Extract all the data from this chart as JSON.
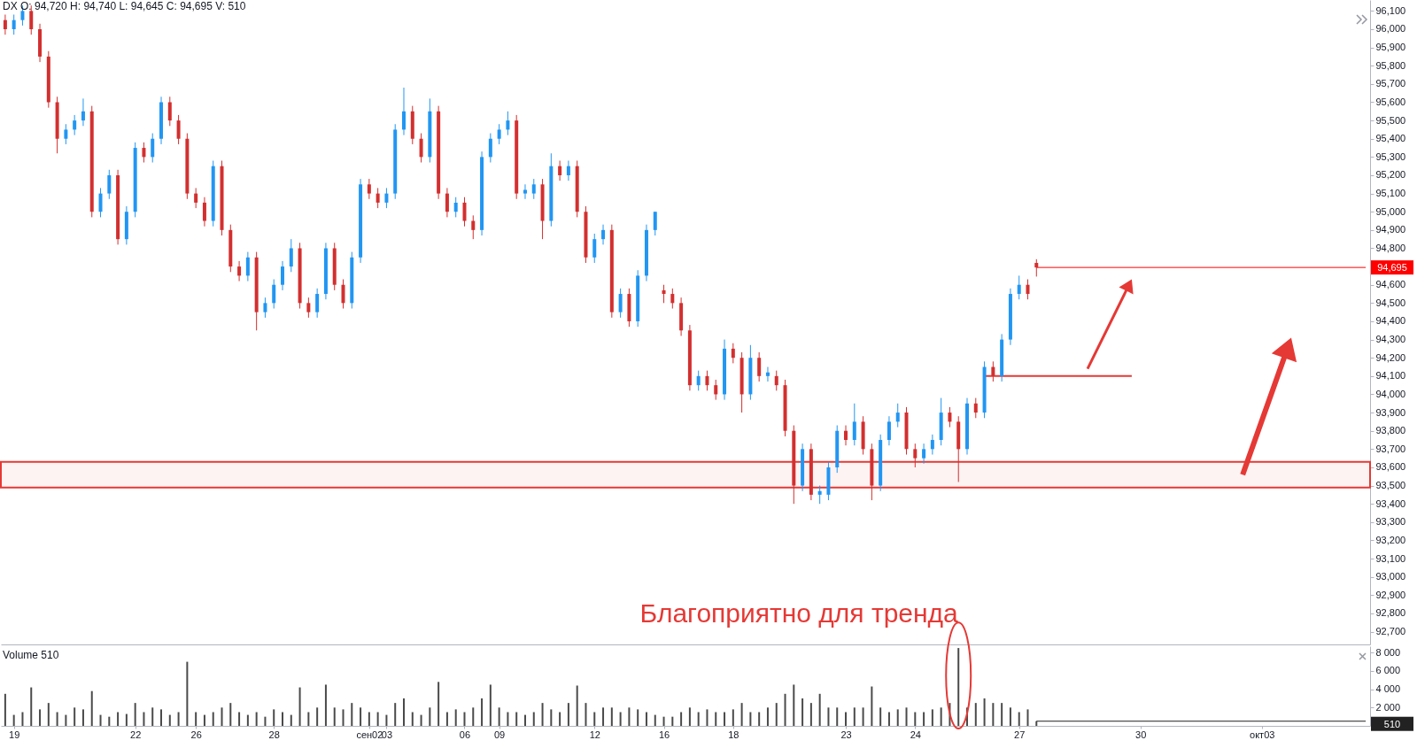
{
  "chart_data": [
    {
      "type": "candlestick",
      "title": "DX O: 94,720 H: 94,740 L: 94,645 C: 94,695 V: 510",
      "categories": [
        null,
        null,
        null,
        null,
        null,
        null,
        null,
        null,
        null,
        null,
        null,
        null,
        null,
        null,
        null,
        null,
        null,
        null,
        null,
        null,
        null,
        null,
        null,
        null,
        null,
        null,
        null,
        null,
        null,
        null,
        null,
        null,
        null,
        null,
        null,
        null,
        null,
        null,
        null,
        null,
        null,
        null,
        null,
        null,
        null,
        null,
        null,
        null,
        null,
        null,
        null,
        null,
        null,
        null,
        null,
        null,
        null,
        null,
        null,
        null,
        null,
        null,
        null,
        null,
        null,
        null,
        null,
        null,
        null,
        null,
        null,
        null,
        null,
        null,
        null,
        null,
        null,
        null,
        null,
        null,
        null,
        null,
        null,
        null,
        null,
        null,
        null,
        null,
        null,
        null,
        null,
        null,
        null,
        null,
        null,
        null,
        null,
        null,
        null,
        null,
        null,
        null,
        null,
        null,
        null,
        null,
        null,
        null,
        null,
        null,
        null,
        null,
        null,
        null,
        null,
        null,
        null,
        null,
        null,
        null,
        null,
        null,
        null,
        null,
        null,
        null,
        null,
        null,
        null,
        null,
        null,
        null,
        null,
        null,
        null,
        null,
        null,
        null,
        null,
        null,
        null,
        null,
        null,
        null,
        null,
        null,
        null,
        null,
        null,
        null,
        null,
        null,
        null,
        null,
        null,
        null,
        null,
        null
      ],
      "ohlc": [
        [
          96050,
          96080,
          95970,
          96000
        ],
        [
          96000,
          96080,
          95970,
          96050
        ],
        [
          96050,
          96130,
          96020,
          96100
        ],
        [
          96100,
          96130,
          95970,
          96000
        ],
        [
          96000,
          96030,
          95820,
          95850
        ],
        [
          95850,
          95880,
          95570,
          95600
        ],
        [
          95600,
          95630,
          95320,
          95400
        ],
        [
          95400,
          95480,
          95370,
          95450
        ],
        [
          95450,
          95530,
          95420,
          95500
        ],
        [
          95500,
          95620,
          95470,
          95550
        ],
        [
          95550,
          95580,
          94970,
          95000
        ],
        [
          95000,
          95130,
          94970,
          95100
        ],
        [
          95100,
          95230,
          95070,
          95200
        ],
        [
          95200,
          95230,
          94820,
          94850
        ],
        [
          94850,
          95030,
          94820,
          95000
        ],
        [
          95000,
          95380,
          94970,
          95350
        ],
        [
          95350,
          95380,
          95270,
          95300
        ],
        [
          95300,
          95430,
          95270,
          95400
        ],
        [
          95400,
          95630,
          95370,
          95600
        ],
        [
          95600,
          95630,
          95470,
          95500
        ],
        [
          95500,
          95530,
          95370,
          95400
        ],
        [
          95400,
          95430,
          95070,
          95100
        ],
        [
          95100,
          95130,
          95020,
          95050
        ],
        [
          95050,
          95080,
          94920,
          94950
        ],
        [
          94950,
          95280,
          94920,
          95250
        ],
        [
          95250,
          95280,
          94870,
          94900
        ],
        [
          94900,
          94930,
          94670,
          94700
        ],
        [
          94700,
          94730,
          94620,
          94650
        ],
        [
          94650,
          94780,
          94620,
          94750
        ],
        [
          94750,
          94780,
          94350,
          94450
        ],
        [
          94450,
          94530,
          94420,
          94500
        ],
        [
          94500,
          94630,
          94470,
          94600
        ],
        [
          94600,
          94730,
          94570,
          94700
        ],
        [
          94700,
          94850,
          94670,
          94800
        ],
        [
          94800,
          94830,
          94470,
          94500
        ],
        [
          94500,
          94530,
          94420,
          94450
        ],
        [
          94450,
          94580,
          94420,
          94550
        ],
        [
          94550,
          94830,
          94520,
          94800
        ],
        [
          94800,
          94830,
          94570,
          94600
        ],
        [
          94600,
          94630,
          94470,
          94500
        ],
        [
          94500,
          94780,
          94470,
          94750
        ],
        [
          94750,
          95180,
          94720,
          95150
        ],
        [
          95150,
          95180,
          95070,
          95100
        ],
        [
          95100,
          95130,
          95020,
          95050
        ],
        [
          95050,
          95130,
          95020,
          95100
        ],
        [
          95100,
          95480,
          95070,
          95450
        ],
        [
          95450,
          95680,
          95420,
          95550
        ],
        [
          95550,
          95580,
          95370,
          95400
        ],
        [
          95400,
          95430,
          95270,
          95300
        ],
        [
          95300,
          95620,
          95270,
          95550
        ],
        [
          95550,
          95580,
          95070,
          95100
        ],
        [
          95100,
          95130,
          94970,
          95000
        ],
        [
          95000,
          95080,
          94970,
          95050
        ],
        [
          95050,
          95080,
          94920,
          94950
        ],
        [
          94950,
          94980,
          94850,
          94900
        ],
        [
          94900,
          95330,
          94870,
          95300
        ],
        [
          95300,
          95430,
          95270,
          95400
        ],
        [
          95400,
          95480,
          95370,
          95450
        ],
        [
          95450,
          95550,
          95420,
          95500
        ],
        [
          95500,
          95530,
          95070,
          95100
        ],
        [
          95100,
          95150,
          95070,
          95120
        ],
        [
          95100,
          95180,
          95070,
          95150
        ],
        [
          95150,
          95180,
          94850,
          94950
        ],
        [
          94950,
          95320,
          94920,
          95250
        ],
        [
          95250,
          95280,
          95170,
          95200
        ],
        [
          95200,
          95280,
          95170,
          95250
        ],
        [
          95250,
          95280,
          94970,
          95000
        ],
        [
          95000,
          95030,
          94720,
          94750
        ],
        [
          94750,
          94880,
          94720,
          94850
        ],
        [
          94850,
          94930,
          94820,
          94900
        ],
        [
          94900,
          94930,
          94420,
          94450
        ],
        [
          94450,
          94580,
          94420,
          94550
        ],
        [
          94550,
          94580,
          94370,
          94400
        ],
        [
          94400,
          94680,
          94370,
          94650
        ],
        [
          94650,
          94930,
          94620,
          94900
        ],
        [
          94900,
          95000,
          94870,
          95000
        ],
        [
          94570,
          94600,
          94500,
          94550
        ],
        [
          94550,
          94580,
          94470,
          94500
        ],
        [
          94500,
          94530,
          94320,
          94350
        ],
        [
          94350,
          94380,
          94020,
          94050
        ],
        [
          94050,
          94130,
          94020,
          94100
        ],
        [
          94100,
          94130,
          94020,
          94050
        ],
        [
          94050,
          94080,
          93970,
          94000
        ],
        [
          94000,
          94300,
          93970,
          94250
        ],
        [
          94250,
          94280,
          94170,
          94200
        ],
        [
          94200,
          94230,
          93900,
          94000
        ],
        [
          94000,
          94270,
          93970,
          94200
        ],
        [
          94200,
          94230,
          94070,
          94100
        ],
        [
          94100,
          94150,
          94070,
          94120
        ],
        [
          94100,
          94130,
          94020,
          94050
        ],
        [
          94050,
          94080,
          93770,
          93800
        ],
        [
          93800,
          93830,
          93400,
          93500
        ],
        [
          93500,
          93730,
          93470,
          93700
        ],
        [
          93700,
          93730,
          93420,
          93450
        ],
        [
          93450,
          93500,
          93400,
          93470
        ],
        [
          93450,
          93630,
          93420,
          93600
        ],
        [
          93600,
          93830,
          93570,
          93800
        ],
        [
          93800,
          93830,
          93720,
          93750
        ],
        [
          93750,
          93950,
          93720,
          93850
        ],
        [
          93850,
          93880,
          93670,
          93700
        ],
        [
          93700,
          93730,
          93420,
          93500
        ],
        [
          93500,
          93780,
          93470,
          93750
        ],
        [
          93750,
          93880,
          93720,
          93850
        ],
        [
          93850,
          93950,
          93820,
          93900
        ],
        [
          93900,
          93930,
          93670,
          93700
        ],
        [
          93700,
          93730,
          93600,
          93650
        ],
        [
          93650,
          93730,
          93620,
          93700
        ],
        [
          93700,
          93780,
          93670,
          93750
        ],
        [
          93750,
          93980,
          93720,
          93900
        ],
        [
          93900,
          93930,
          93820,
          93850
        ],
        [
          93850,
          93880,
          93520,
          93700
        ],
        [
          93700,
          93980,
          93670,
          93950
        ],
        [
          93950,
          93980,
          93870,
          93900
        ],
        [
          93900,
          94180,
          93870,
          94150
        ],
        [
          94150,
          94180,
          94070,
          94100
        ],
        [
          94100,
          94330,
          94070,
          94300
        ],
        [
          94300,
          94580,
          94270,
          94550
        ],
        [
          94550,
          94650,
          94520,
          94600
        ],
        [
          94600,
          94630,
          94520,
          94550
        ],
        [
          94720,
          94740,
          94645,
          94695
        ],
        null,
        null,
        null,
        null,
        null,
        null,
        null,
        null,
        null,
        null,
        null,
        null,
        null,
        null,
        null,
        null,
        null,
        null,
        null,
        null,
        null,
        null,
        null,
        null,
        null,
        null,
        null,
        null,
        null,
        null,
        null,
        null,
        null,
        null,
        null,
        null,
        null,
        null
      ],
      "colors": [
        "#d32f2f",
        "#2196f3",
        "#2196f3",
        "#d32f2f",
        "#d32f2f",
        "#d32f2f",
        "#d32f2f",
        "#2196f3",
        "#2196f3",
        "#2196f3",
        "#d32f2f",
        "#2196f3",
        "#2196f3",
        "#d32f2f",
        "#2196f3",
        "#2196f3",
        "#d32f2f",
        "#2196f3",
        "#2196f3",
        "#d32f2f",
        "#d32f2f",
        "#d32f2f",
        "#d32f2f",
        "#d32f2f",
        "#2196f3",
        "#d32f2f",
        "#d32f2f",
        "#d32f2f",
        "#2196f3",
        "#d32f2f",
        "#2196f3",
        "#2196f3",
        "#2196f3",
        "#2196f3",
        "#d32f2f",
        "#d32f2f",
        "#2196f3",
        "#2196f3",
        "#d32f2f",
        "#d32f2f",
        "#2196f3",
        "#2196f3",
        "#d32f2f",
        "#d32f2f",
        "#2196f3",
        "#2196f3",
        "#2196f3",
        "#d32f2f",
        "#d32f2f",
        "#2196f3",
        "#d32f2f",
        "#d32f2f",
        "#2196f3",
        "#d32f2f",
        "#d32f2f",
        "#2196f3",
        "#2196f3",
        "#2196f3",
        "#2196f3",
        "#d32f2f",
        "#2196f3",
        "#2196f3",
        "#d32f2f",
        "#2196f3",
        "#d32f2f",
        "#2196f3",
        "#d32f2f",
        "#d32f2f",
        "#2196f3",
        "#2196f3",
        "#d32f2f",
        "#2196f3",
        "#d32f2f",
        "#2196f3",
        "#2196f3",
        "#2196f3",
        "#d32f2f",
        "#d32f2f",
        "#d32f2f",
        "#d32f2f",
        "#2196f3",
        "#d32f2f",
        "#d32f2f",
        "#2196f3",
        "#d32f2f",
        "#d32f2f",
        "#2196f3",
        "#d32f2f",
        "#2196f3",
        "#d32f2f",
        "#d32f2f",
        "#d32f2f",
        "#2196f3",
        "#d32f2f",
        "#2196f3",
        "#2196f3",
        "#2196f3",
        "#d32f2f",
        "#2196f3",
        "#d32f2f",
        "#d32f2f",
        "#2196f3",
        "#2196f3",
        "#2196f3",
        "#d32f2f",
        "#d32f2f",
        "#2196f3",
        "#2196f3",
        "#2196f3",
        "#d32f2f",
        "#d32f2f",
        "#2196f3",
        "#d32f2f",
        "#2196f3",
        "#d32f2f",
        "#2196f3",
        "#2196f3",
        "#2196f3",
        "#d32f2f",
        "#d32f2f",
        null,
        null,
        null,
        null,
        null,
        null,
        null,
        null,
        null,
        null,
        null,
        null,
        null,
        null,
        null,
        null,
        null,
        null,
        null,
        null,
        null,
        null,
        null,
        null,
        null,
        null,
        null,
        null,
        null,
        null,
        null,
        null,
        null,
        null,
        null,
        null,
        null,
        null
      ],
      "series": [
        {
          "type": "line",
          "color": "#e53935",
          "values": [
            null,
            null,
            null,
            null,
            null,
            null,
            null,
            null,
            null,
            null,
            null,
            null,
            null,
            null,
            null,
            null,
            null,
            null,
            null,
            null,
            null,
            null,
            null,
            null,
            null,
            null,
            null,
            null,
            null,
            null,
            null,
            null,
            null,
            null,
            null,
            null,
            null,
            null,
            null,
            null,
            null,
            null,
            null,
            null,
            null,
            null,
            null,
            null,
            null,
            null,
            null,
            null,
            null,
            null,
            null,
            null,
            null,
            null,
            null,
            null,
            null,
            null,
            null,
            null,
            null,
            null,
            null,
            null,
            null,
            null,
            null,
            null,
            null,
            null,
            null,
            null,
            null,
            null,
            null,
            null,
            null,
            null,
            null,
            null,
            null,
            null,
            null,
            null,
            null,
            null,
            null,
            null,
            null,
            null,
            null,
            null,
            null,
            null,
            null,
            null,
            null,
            null,
            null,
            null,
            null,
            null,
            null,
            null,
            null,
            null,
            null,
            null,
            null,
            94100,
            94100,
            94100,
            94100,
            94100,
            94100,
            94100,
            94100,
            94100,
            94100,
            94100,
            94100,
            94100,
            94100,
            94100,
            94100,
            94100,
            94100,
            null,
            null,
            null,
            null,
            null,
            null,
            null,
            null,
            null,
            null,
            null,
            null,
            null,
            null,
            null,
            null,
            null,
            null,
            null,
            null,
            null,
            null,
            null,
            null,
            null,
            null,
            null
          ]
        }
      ],
      "ref_lines": [
        {
          "axis": "y",
          "value": 94695,
          "label": "94,695",
          "color": "#ff0000"
        }
      ],
      "bands": [
        {
          "axis": "y",
          "from": 93490,
          "to": 93630,
          "color": "#e53935"
        }
      ],
      "annotations": [
        "Благоприятно для тренда"
      ],
      "ylim": [
        92630,
        96160
      ],
      "tick_labels": "y",
      "grid": false,
      "yticks": [
        {
          "value": 92700,
          "label": "92,700"
        },
        {
          "value": 92800,
          "label": "92,800"
        },
        {
          "value": 92900,
          "label": "92,900"
        },
        {
          "value": 93000,
          "label": "93,000"
        },
        {
          "value": 93100,
          "label": "93,100"
        },
        {
          "value": 93200,
          "label": "93,200"
        },
        {
          "value": 93300,
          "label": "93,300"
        },
        {
          "value": 93400,
          "label": "93,400"
        },
        {
          "value": 93500,
          "label": "93,500"
        },
        {
          "value": 93600,
          "label": "93,600"
        },
        {
          "value": 93700,
          "label": "93,700"
        },
        {
          "value": 93800,
          "label": "93,800"
        },
        {
          "value": 93900,
          "label": "93,900"
        },
        {
          "value": 94000,
          "label": "94,000"
        },
        {
          "value": 94100,
          "label": "94,100"
        },
        {
          "value": 94200,
          "label": "94,200"
        },
        {
          "value": 94300,
          "label": "94,300"
        },
        {
          "value": 94400,
          "label": "94,400"
        },
        {
          "value": 94500,
          "label": "94,500"
        },
        {
          "value": 94600,
          "label": "94,600"
        },
        {
          "value": 94800,
          "label": "94,800"
        },
        {
          "value": 94900,
          "label": "94,900"
        },
        {
          "value": 95000,
          "label": "95,000"
        },
        {
          "value": 95100,
          "label": "95,100"
        },
        {
          "value": 95200,
          "label": "95,200"
        },
        {
          "value": 95300,
          "label": "95,300"
        },
        {
          "value": 95400,
          "label": "95,400"
        },
        {
          "value": 95500,
          "label": "95,500"
        },
        {
          "value": 95600,
          "label": "95,600"
        },
        {
          "value": 95700,
          "label": "95,700"
        },
        {
          "value": 95800,
          "label": "95,800"
        },
        {
          "value": 95900,
          "label": "95,900"
        },
        {
          "value": 96000,
          "label": "96,000"
        },
        {
          "value": 96100,
          "label": "96,100"
        }
      ]
    },
    {
      "type": "bar",
      "title": "Volume 510",
      "color": "#4a4a4a",
      "categories": [
        null,
        "19",
        null,
        null,
        null,
        null,
        null,
        null,
        null,
        null,
        null,
        null,
        null,
        null,
        null,
        "22",
        null,
        null,
        null,
        null,
        null,
        null,
        "26",
        null,
        null,
        null,
        null,
        null,
        null,
        null,
        null,
        "28",
        null,
        null,
        null,
        null,
        null,
        null,
        null,
        null,
        null,
        null,
        "сен02",
        null,
        "03",
        null,
        null,
        null,
        null,
        null,
        null,
        null,
        null,
        "06",
        null,
        null,
        null,
        "09",
        null,
        null,
        null,
        null,
        null,
        null,
        null,
        null,
        null,
        null,
        "12",
        null,
        null,
        null,
        null,
        null,
        null,
        null,
        "16",
        null,
        null,
        null,
        null,
        null,
        null,
        null,
        "18",
        null,
        null,
        null,
        null,
        null,
        null,
        null,
        null,
        null,
        null,
        null,
        null,
        "23",
        null,
        null,
        null,
        null,
        null,
        null,
        null,
        "24",
        null,
        null,
        null,
        null,
        null,
        null,
        null,
        null,
        null,
        null,
        null,
        "27",
        null,
        null,
        null,
        null,
        null,
        null,
        null,
        null,
        null,
        null,
        null,
        null,
        null,
        "30",
        null,
        null,
        null,
        null,
        null,
        null,
        null,
        null,
        null,
        null,
        null,
        null,
        null,
        "окт03",
        null,
        null,
        null,
        null,
        null,
        null,
        null,
        null,
        null,
        null,
        null,
        null
      ],
      "values": [
        3500,
        1200,
        1500,
        4200,
        1800,
        2500,
        1500,
        1200,
        2000,
        1800,
        3800,
        1200,
        1000,
        1500,
        1300,
        2500,
        1500,
        2000,
        1800,
        1200,
        1500,
        7000,
        1500,
        1200,
        1500,
        2000,
        2500,
        1500,
        1200,
        1500,
        1000,
        1800,
        1500,
        1200,
        4200,
        1500,
        2000,
        4500,
        2000,
        1800,
        2500,
        2000,
        1500,
        1500,
        1200,
        2500,
        3000,
        1500,
        1200,
        2000,
        4800,
        1500,
        1800,
        1500,
        2000,
        3000,
        4500,
        2000,
        1500,
        1500,
        1200,
        1500,
        2500,
        1800,
        1500,
        2500,
        4400,
        2500,
        1500,
        2000,
        2000,
        1500,
        2000,
        1800,
        1500,
        1200,
        1000,
        1000,
        1500,
        2000,
        1500,
        1800,
        1500,
        1500,
        1800,
        2500,
        1500,
        1500,
        2000,
        2500,
        3500,
        4500,
        3000,
        2500,
        3500,
        2000,
        2000,
        1500,
        2000,
        2000,
        4300,
        2000,
        1500,
        1800,
        2000,
        1500,
        1500,
        1800,
        2000,
        2500,
        8500,
        2000,
        2500,
        3000,
        2500,
        2500,
        2000,
        1500,
        1800,
        510,
        null,
        null,
        null,
        null,
        null,
        null,
        null,
        null,
        null,
        null,
        null,
        null,
        null,
        null,
        null,
        null,
        null,
        null,
        null,
        null,
        null,
        null,
        null,
        null,
        null,
        null,
        null,
        null,
        null,
        null,
        null,
        null,
        null,
        null,
        null,
        null,
        null,
        null
      ],
      "ref_lines": [
        {
          "axis": "y",
          "value": 510,
          "label": "510",
          "color": "#222222"
        }
      ],
      "ylim": [
        0,
        8700
      ],
      "grid": false,
      "yticks": [
        {
          "value": 2000,
          "label": "2 000"
        },
        {
          "value": 4000,
          "label": "4 000"
        },
        {
          "value": 6000,
          "label": "6 000"
        },
        {
          "value": 8000,
          "label": "8 000"
        }
      ]
    }
  ]
}
